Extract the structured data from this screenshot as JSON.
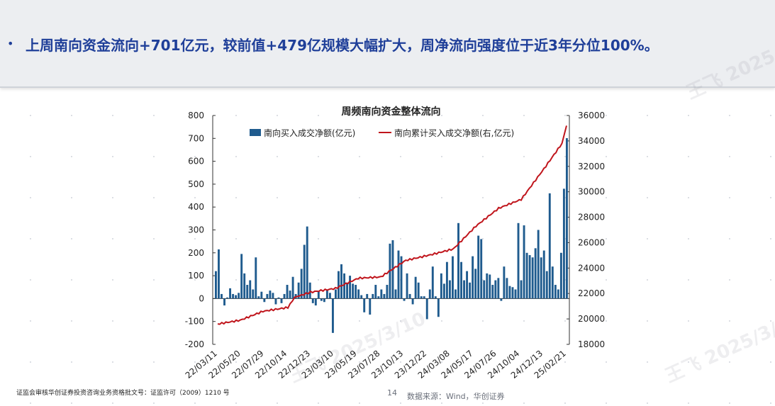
{
  "header": {
    "bullet": "•",
    "text": "上周南向资金流向+701亿元，较前值+479亿规模大幅扩大，周净流向强度位于近3年分位100%。"
  },
  "watermark": {
    "text": "王飞 2025/3/10"
  },
  "footer": {
    "license": "证监会审核华创证券投资咨询业务资格批文号：证监许可（2009）1210 号",
    "page": "14",
    "source": "数据来源：Wind，华创证券"
  },
  "colors": {
    "bar": "#1f5b8e",
    "line": "#c0151c",
    "banner_text": "#1f3f99"
  },
  "chart_data": {
    "type": "bar+line",
    "title": "周频南向资金整体流向",
    "x_tick_labels": [
      "22/03/11",
      "22/05/20",
      "22/07/29",
      "22/10/14",
      "22/12/23",
      "23/03/10",
      "23/05/19",
      "23/07/28",
      "23/10/13",
      "23/12/22",
      "24/03/08",
      "24/05/17",
      "24/07/26",
      "24/10/04",
      "24/12/13",
      "25/02/21"
    ],
    "y_left": {
      "min": -200,
      "max": 800,
      "ticks": [
        -200,
        -100,
        0,
        100,
        200,
        300,
        400,
        500,
        600,
        700,
        800
      ]
    },
    "y_right": {
      "min": 18000,
      "max": 36000,
      "ticks": [
        18000,
        20000,
        22000,
        24000,
        26000,
        28000,
        30000,
        32000,
        34000,
        36000
      ]
    },
    "legend": {
      "placement": "top",
      "position": "top"
    },
    "series": [
      {
        "name": "南向买入成交净额(亿元)",
        "type": "bar",
        "axis": "left",
        "values": [
          120,
          215,
          20,
          -30,
          5,
          45,
          20,
          15,
          25,
          195,
          110,
          60,
          80,
          40,
          180,
          10,
          30,
          -15,
          20,
          35,
          25,
          -25,
          5,
          -20,
          20,
          60,
          35,
          95,
          20,
          70,
          130,
          235,
          315,
          70,
          -20,
          -30,
          30,
          -10,
          -15,
          40,
          25,
          -150,
          40,
          120,
          150,
          110,
          70,
          100,
          65,
          60,
          40,
          15,
          -60,
          20,
          -70,
          20,
          60,
          10,
          40,
          20,
          60,
          240,
          255,
          40,
          210,
          185,
          -10,
          110,
          20,
          -25,
          95,
          70,
          10,
          10,
          -90,
          40,
          140,
          10,
          -80,
          110,
          65,
          160,
          80,
          185,
          40,
          330,
          160,
          80,
          120,
          70,
          185,
          130,
          275,
          260,
          80,
          110,
          105,
          60,
          80,
          90,
          -10,
          140,
          90,
          55,
          50,
          40,
          330,
          80,
          320,
          200,
          190,
          180,
          220,
          300,
          180,
          210,
          120,
          460,
          140,
          60,
          40,
          200,
          480,
          701
        ],
        "estimated": true
      },
      {
        "name": "南向累计买入成交净额(右,亿元)",
        "type": "line",
        "axis": "right",
        "anchors": [
          [
            "22/03/11",
            19600
          ],
          [
            "22/05/20",
            19900
          ],
          [
            "22/07/29",
            20600
          ],
          [
            "22/10/14",
            20900
          ],
          [
            "22/11/04",
            21700
          ],
          [
            "22/12/23",
            22100
          ],
          [
            "23/03/10",
            22400
          ],
          [
            "23/05/19",
            23200
          ],
          [
            "23/07/28",
            23300
          ],
          [
            "23/10/13",
            24600
          ],
          [
            "23/12/22",
            25000
          ],
          [
            "24/03/08",
            25500
          ],
          [
            "24/05/17",
            27300
          ],
          [
            "24/07/26",
            28700
          ],
          [
            "24/10/04",
            29400
          ],
          [
            "24/12/13",
            31800
          ],
          [
            "25/02/07",
            33800
          ],
          [
            "25/02/21",
            35200
          ]
        ],
        "estimated": true
      }
    ]
  }
}
